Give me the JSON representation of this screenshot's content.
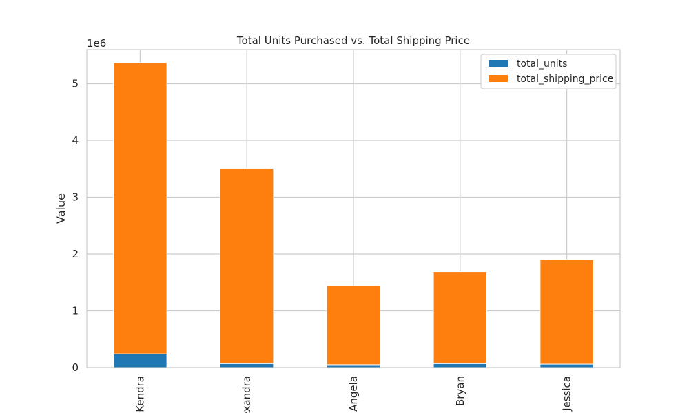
{
  "chart_data": {
    "type": "bar",
    "stacked": true,
    "title": "Total Units Purchased vs. Total Shipping Price",
    "xlabel": "",
    "ylabel": "Value",
    "y_multiplier_label": "1e6",
    "ylim": [
      0,
      5.6
    ],
    "yticks": [
      0,
      1,
      2,
      3,
      4,
      5
    ],
    "categories": [
      "Kendra",
      "Alexandra",
      "Angela",
      "Bryan",
      "Jessica"
    ],
    "series": [
      {
        "name": "total_units",
        "color": "#1f77b4",
        "values": [
          0.24,
          0.07,
          0.05,
          0.07,
          0.06
        ]
      },
      {
        "name": "total_shipping_price",
        "color": "#ff7f0e",
        "values": [
          5.13,
          3.44,
          1.39,
          1.62,
          1.84
        ]
      }
    ],
    "grid": true,
    "legend_position": "top-right"
  }
}
